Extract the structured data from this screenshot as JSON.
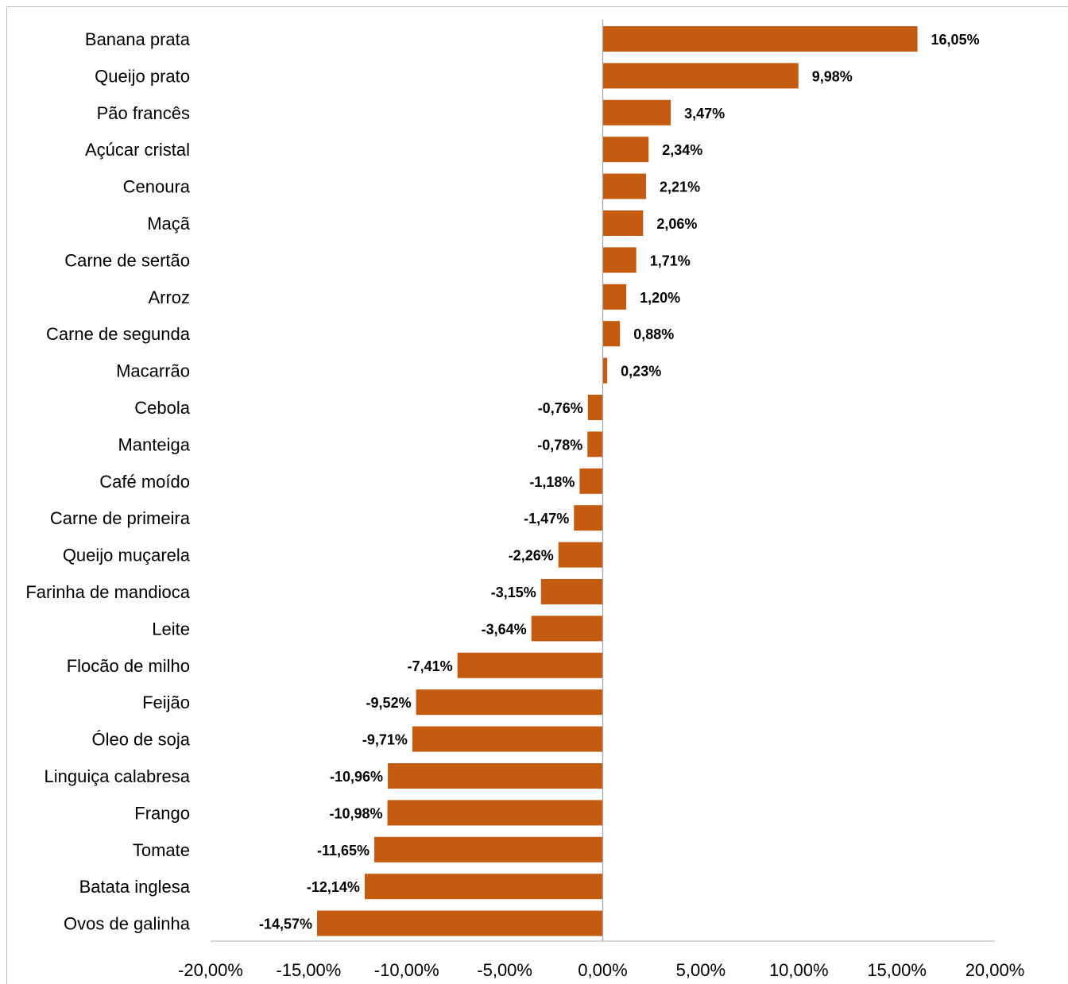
{
  "chart_data": {
    "type": "bar",
    "orientation": "horizontal",
    "title": "",
    "xlabel": "",
    "ylabel": "",
    "xlim": [
      -20,
      20
    ],
    "bar_color": "#c55a11",
    "categories": [
      "Banana prata",
      "Queijo prato",
      "Pão francês",
      "Açúcar cristal",
      "Cenoura",
      "Maçã",
      "Carne de sertão",
      "Arroz",
      "Carne de segunda",
      "Macarrão",
      "Cebola",
      "Manteiga",
      "Café moído",
      "Carne de primeira",
      "Queijo muçarela",
      "Farinha de mandioca",
      "Leite",
      "Flocão de milho",
      "Feijão",
      "Óleo de soja",
      "Linguiça calabresa",
      "Frango",
      "Tomate",
      "Batata inglesa",
      "Ovos de galinha"
    ],
    "values": [
      16.05,
      9.98,
      3.47,
      2.34,
      2.21,
      2.06,
      1.71,
      1.2,
      0.88,
      0.23,
      -0.76,
      -0.78,
      -1.18,
      -1.47,
      -2.26,
      -3.15,
      -3.64,
      -7.41,
      -9.52,
      -9.71,
      -10.96,
      -10.98,
      -11.65,
      -12.14,
      -14.57
    ],
    "value_labels": [
      "16,05%",
      "9,98%",
      "3,47%",
      "2,34%",
      "2,21%",
      "2,06%",
      "1,71%",
      "1,20%",
      "0,88%",
      "0,23%",
      "-0,76%",
      "-0,78%",
      "-1,18%",
      "-1,47%",
      "-2,26%",
      "-3,15%",
      "-3,64%",
      "-7,41%",
      "-9,52%",
      "-9,71%",
      "-10,96%",
      "-10,98%",
      "-11,65%",
      "-12,14%",
      "-14,57%"
    ],
    "x_ticks": [
      -20,
      -15,
      -10,
      -5,
      0,
      5,
      10,
      15,
      20
    ],
    "x_tick_labels": [
      "-20,00%",
      "-15,00%",
      "-10,00%",
      "-5,00%",
      "0,00%",
      "5,00%",
      "10,00%",
      "15,00%",
      "20,00%"
    ],
    "grid": false,
    "legend": "none"
  }
}
